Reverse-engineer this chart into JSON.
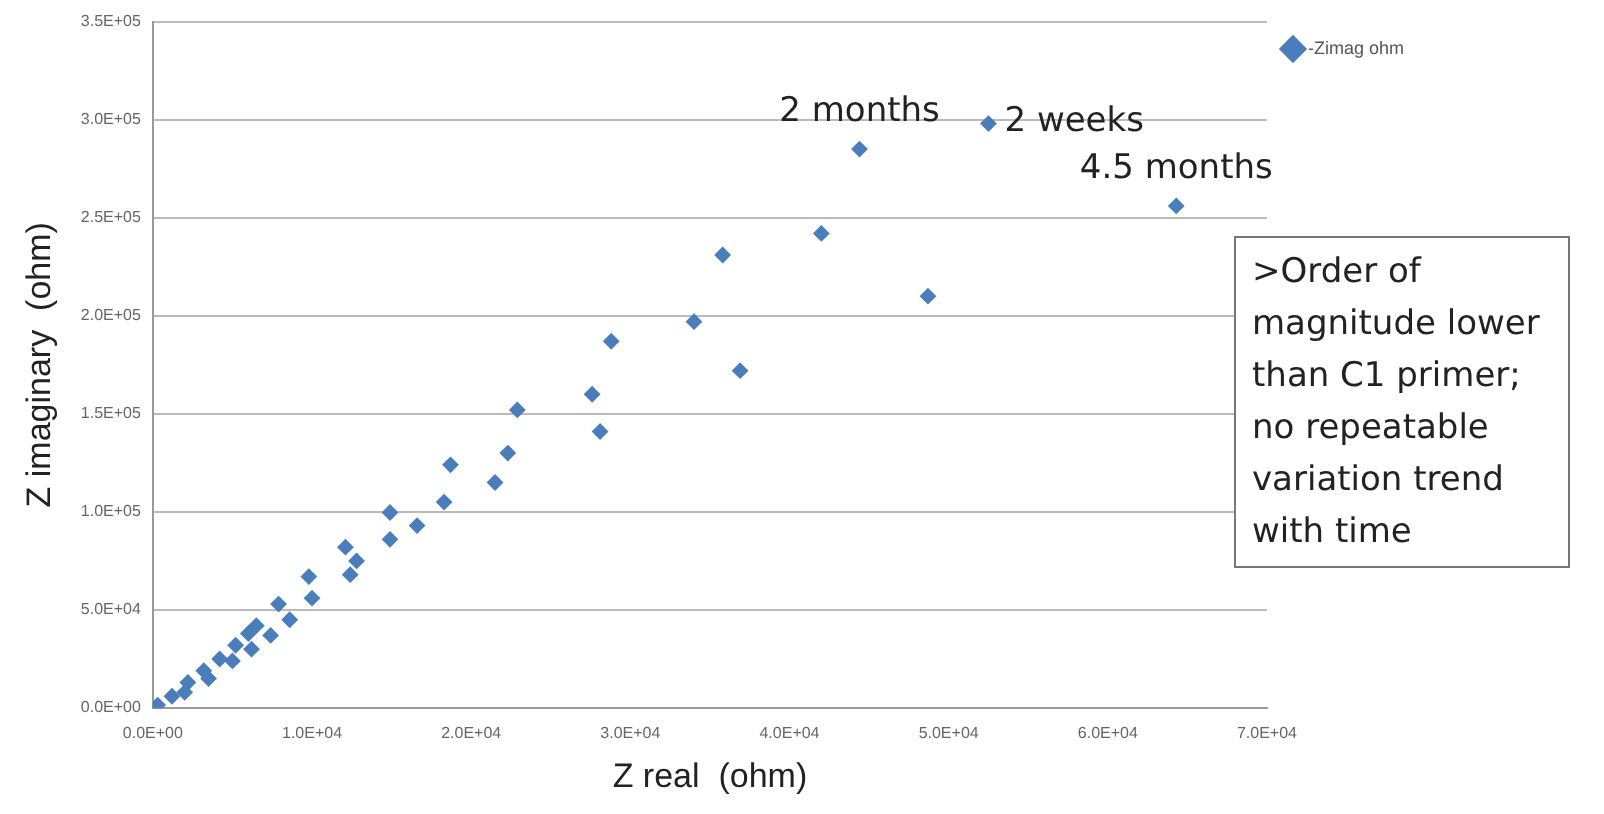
{
  "chart_data": {
    "type": "scatter",
    "xlabel": "Z real  (ohm)",
    "ylabel": "Z imaginary  (ohm)",
    "xlim": [
      0,
      70000
    ],
    "ylim": [
      0,
      350000
    ],
    "xticks": [
      {
        "value": 0,
        "label": "0.0E+00"
      },
      {
        "value": 10000,
        "label": "1.0E+04"
      },
      {
        "value": 20000,
        "label": "2.0E+04"
      },
      {
        "value": 30000,
        "label": "3.0E+04"
      },
      {
        "value": 40000,
        "label": "4.0E+04"
      },
      {
        "value": 50000,
        "label": "5.0E+04"
      },
      {
        "value": 60000,
        "label": "6.0E+04"
      },
      {
        "value": 70000,
        "label": "7.0E+04"
      }
    ],
    "yticks": [
      {
        "value": 0,
        "label": "0.0E+00"
      },
      {
        "value": 50000,
        "label": "5.0E+04"
      },
      {
        "value": 100000,
        "label": "1.0E+05"
      },
      {
        "value": 150000,
        "label": "1.5E+05"
      },
      {
        "value": 200000,
        "label": "2.0E+05"
      },
      {
        "value": 250000,
        "label": "2.5E+05"
      },
      {
        "value": 300000,
        "label": "3.0E+05"
      },
      {
        "value": 350000,
        "label": "3.5E+05"
      }
    ],
    "grid": "y",
    "legend": "right",
    "marker": "diamond",
    "series": [
      {
        "name": "-Zimag ohm",
        "color": "#4a7ebb",
        "x": [
          300,
          1200,
          2200,
          3200,
          4200,
          5200,
          6000,
          2000,
          3500,
          5000,
          6200,
          6500,
          7400,
          7900,
          8600,
          9800,
          10000,
          12100,
          12400,
          12800,
          14900,
          14900,
          16600,
          18300,
          18700,
          21500,
          22300,
          22900,
          27600,
          28100,
          28800,
          34000,
          35800,
          36900,
          42000,
          44400,
          48700,
          52500,
          64300
        ],
        "values": [
          1500,
          6000,
          13000,
          19000,
          25000,
          32000,
          38000,
          8000,
          15000,
          24000,
          30000,
          42000,
          37000,
          53000,
          45000,
          67000,
          56000,
          82000,
          68000,
          75000,
          99700,
          86000,
          93000,
          105000,
          124000,
          115000,
          130000,
          152000,
          160000,
          141000,
          187000,
          197000,
          231000,
          172000,
          242000,
          285000,
          210000,
          298000,
          256000
        ]
      }
    ],
    "annotations": [
      {
        "text": "2 months",
        "x": 44400,
        "y": 285000
      },
      {
        "text": "2 weeks",
        "x": 52500,
        "y": 298000
      },
      {
        "text": "4.5 months",
        "x": 64300,
        "y": 256000
      },
      ">Order of magnitude lower than C1 primer; no repeatable variation trend with time"
    ]
  }
}
